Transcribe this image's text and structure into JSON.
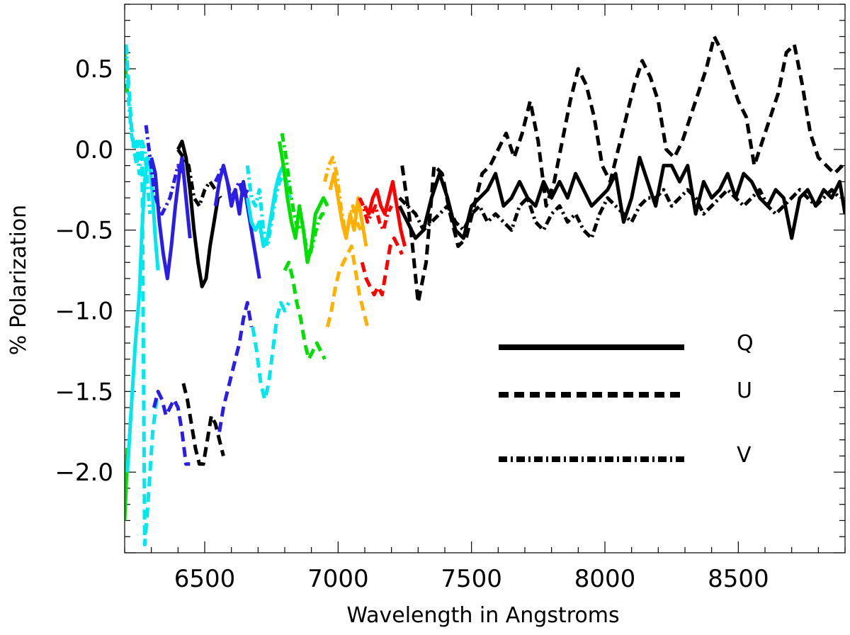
{
  "chart_data": {
    "type": "line",
    "title": "",
    "xlabel": "Wavelength in Angstroms",
    "ylabel": "% Polarization",
    "xlim": [
      6200,
      8900
    ],
    "ylim": [
      -2.5,
      0.9
    ],
    "xticks": [
      {
        "value": 6500,
        "label": "6500"
      },
      {
        "value": 7000,
        "label": "7000"
      },
      {
        "value": 7500,
        "label": "7500"
      },
      {
        "value": 8000,
        "label": "8000"
      },
      {
        "value": 8500,
        "label": "8500"
      }
    ],
    "yticks": [
      {
        "value": 0.5,
        "label": "0.5"
      },
      {
        "value": 0.0,
        "label": "0.0"
      },
      {
        "value": -0.5,
        "label": "−0.5"
      },
      {
        "value": -1.0,
        "label": "−1.0"
      },
      {
        "value": -1.5,
        "label": "−1.5"
      },
      {
        "value": -2.0,
        "label": "−2.0"
      }
    ],
    "grid": false,
    "legend": {
      "placement": "lower-right",
      "entries": [
        {
          "label": "Q",
          "style": "solid"
        },
        {
          "label": "U",
          "style": "dashed"
        },
        {
          "label": "V",
          "style": "dashdot"
        }
      ]
    },
    "series": [
      {
        "stokes": "Q",
        "style": "solid",
        "color": "#00e000",
        "x": [
          6200,
          6205,
          6210
        ],
        "y": [
          -2.3,
          -2.1,
          -1.85
        ]
      },
      {
        "stokes": "U",
        "style": "dashed",
        "color": "#00e000",
        "x": [
          6200,
          6205,
          6210
        ],
        "y": [
          0.6,
          0.45,
          0.35
        ]
      },
      {
        "stokes": "Q",
        "style": "solid",
        "color": "#00e8ee",
        "x": [
          6210,
          6225,
          6240,
          6255,
          6265,
          6275,
          6285,
          6295,
          6305,
          6315,
          6325
        ],
        "y": [
          -2.0,
          -1.6,
          -1.2,
          -0.9,
          -0.5,
          -0.2,
          -0.05,
          -0.1,
          -0.3,
          -0.55,
          -0.75
        ]
      },
      {
        "stokes": "U",
        "style": "dashed",
        "color": "#00e8ee",
        "x": [
          6205,
          6215,
          6225,
          6235,
          6245,
          6255,
          6265,
          6275,
          6285,
          6295,
          6305,
          6320
        ],
        "y": [
          0.65,
          0.4,
          0.15,
          0.0,
          -0.1,
          0.05,
          0.0,
          -2.45,
          -2.25,
          -2.0,
          -1.75,
          -1.55
        ]
      },
      {
        "stokes": "V",
        "style": "dashdot",
        "color": "#00e8ee",
        "x": [
          6205,
          6215,
          6225,
          6235,
          6245,
          6255,
          6265,
          6275,
          6285,
          6295
        ],
        "y": [
          0.65,
          0.3,
          0.1,
          0.0,
          0.05,
          -0.15,
          0.05,
          0.0,
          -0.2,
          -0.4
        ]
      },
      {
        "stokes": "Q",
        "style": "solid",
        "color": "#2a1ee6",
        "x": [
          6300,
          6315,
          6330,
          6345,
          6360,
          6375,
          6390,
          6405,
          6415,
          6430,
          6445
        ],
        "y": [
          -0.05,
          -0.15,
          -0.45,
          -0.65,
          -0.8,
          -0.6,
          -0.35,
          -0.15,
          -0.05,
          -0.3,
          -0.55
        ]
      },
      {
        "stokes": "U",
        "style": "dashed",
        "color": "#2a1ee6",
        "x": [
          6310,
          6325,
          6340,
          6355,
          6370,
          6385,
          6400,
          6415,
          6430,
          6445
        ],
        "y": [
          -1.6,
          -1.5,
          -1.55,
          -1.65,
          -1.6,
          -1.55,
          -1.6,
          -1.75,
          -1.95,
          -1.95
        ]
      },
      {
        "stokes": "V",
        "style": "dashdot",
        "color": "#2a1ee6",
        "x": [
          6280,
          6295,
          6310,
          6325,
          6340,
          6355,
          6370,
          6385,
          6400,
          6415
        ],
        "y": [
          0.15,
          -0.05,
          -0.25,
          -0.35,
          -0.4,
          -0.35,
          -0.3,
          -0.2,
          -0.1,
          -0.15
        ]
      },
      {
        "stokes": "Q",
        "style": "solid",
        "color": "#000000",
        "x": [
          6400,
          6415,
          6430,
          6445,
          6460,
          6475,
          6490,
          6505,
          6520,
          6535,
          6550
        ],
        "y": [
          0.0,
          0.05,
          -0.05,
          -0.25,
          -0.5,
          -0.7,
          -0.85,
          -0.8,
          -0.6,
          -0.45,
          -0.3
        ]
      },
      {
        "stokes": "U",
        "style": "dashed",
        "color": "#000000",
        "x": [
          6420,
          6435,
          6450,
          6465,
          6480,
          6495,
          6510,
          6525,
          6540,
          6555,
          6570
        ],
        "y": [
          -1.45,
          -1.55,
          -1.7,
          -1.85,
          -1.95,
          -1.95,
          -1.8,
          -1.65,
          -1.7,
          -1.8,
          -1.9
        ]
      },
      {
        "stokes": "V",
        "style": "dashdot",
        "color": "#000000",
        "x": [
          6400,
          6420,
          6440,
          6460,
          6480,
          6500,
          6520,
          6540,
          6560
        ],
        "y": [
          0.0,
          -0.05,
          -0.1,
          -0.3,
          -0.35,
          -0.25,
          -0.2,
          -0.25,
          -0.3
        ]
      },
      {
        "stokes": "Q",
        "style": "solid",
        "color": "#2a1ee6",
        "x": [
          6540,
          6555,
          6570,
          6585,
          6600,
          6615,
          6630,
          6645,
          6660,
          6675,
          6690,
          6705
        ],
        "y": [
          -0.35,
          -0.2,
          -0.1,
          -0.2,
          -0.35,
          -0.25,
          -0.4,
          -0.2,
          -0.35,
          -0.5,
          -0.65,
          -0.8
        ]
      },
      {
        "stokes": "U",
        "style": "dashed",
        "color": "#2a1ee6",
        "x": [
          6555,
          6570,
          6585,
          6600,
          6615,
          6630,
          6645,
          6660,
          6675
        ],
        "y": [
          -1.75,
          -1.6,
          -1.5,
          -1.4,
          -1.3,
          -1.2,
          -1.05,
          -0.95,
          -1.1
        ]
      },
      {
        "stokes": "V",
        "style": "dashdot",
        "color": "#2a1ee6",
        "x": [
          6540,
          6555,
          6570,
          6585,
          6600,
          6615,
          6630,
          6645,
          6660
        ],
        "y": [
          -0.2,
          -0.15,
          -0.1,
          -0.2,
          -0.3,
          -0.25,
          -0.2,
          -0.3,
          -0.25
        ]
      },
      {
        "stokes": "Q",
        "style": "solid",
        "color": "#00e8ee",
        "x": [
          6660,
          6675,
          6690,
          6705,
          6720,
          6735,
          6750,
          6765,
          6780,
          6795
        ],
        "y": [
          -0.3,
          -0.45,
          -0.5,
          -0.45,
          -0.6,
          -0.55,
          -0.4,
          -0.25,
          -0.15,
          -0.1
        ]
      },
      {
        "stokes": "U",
        "style": "dashed",
        "color": "#00e8ee",
        "x": [
          6680,
          6695,
          6710,
          6725,
          6740,
          6755,
          6770,
          6785,
          6800,
          6815
        ],
        "y": [
          -1.1,
          -1.25,
          -1.45,
          -1.55,
          -1.45,
          -1.25,
          -1.05,
          -0.95,
          -1.0,
          -0.95
        ]
      },
      {
        "stokes": "V",
        "style": "dashdot",
        "color": "#00e8ee",
        "x": [
          6660,
          6675,
          6690,
          6705,
          6720,
          6735,
          6750,
          6765,
          6780,
          6800,
          6820
        ],
        "y": [
          -0.1,
          -0.3,
          -0.35,
          -0.25,
          -0.5,
          -0.6,
          -0.45,
          -0.3,
          -0.2,
          -0.15,
          -0.3
        ]
      },
      {
        "stokes": "Q",
        "style": "solid",
        "color": "#00e000",
        "x": [
          6780,
          6795,
          6810,
          6825,
          6840,
          6855,
          6870,
          6885,
          6900,
          6915,
          6930,
          6945,
          6960
        ],
        "y": [
          0.05,
          -0.1,
          -0.3,
          -0.45,
          -0.55,
          -0.35,
          -0.5,
          -0.7,
          -0.6,
          -0.4,
          -0.35,
          -0.3,
          -0.35
        ]
      },
      {
        "stokes": "U",
        "style": "dashed",
        "color": "#00e000",
        "x": [
          6800,
          6815,
          6830,
          6845,
          6860,
          6875,
          6890,
          6905,
          6920,
          6935,
          6950
        ],
        "y": [
          -0.75,
          -0.7,
          -0.8,
          -0.95,
          -1.05,
          -1.2,
          -1.3,
          -1.25,
          -1.2,
          -1.25,
          -1.3
        ]
      },
      {
        "stokes": "V",
        "style": "dashdot",
        "color": "#00e000",
        "x": [
          6790,
          6805,
          6820,
          6835,
          6850,
          6865,
          6880,
          6895,
          6910,
          6925,
          6940,
          6955
        ],
        "y": [
          0.1,
          -0.05,
          -0.25,
          -0.4,
          -0.5,
          -0.45,
          -0.6,
          -0.65,
          -0.55,
          -0.45,
          -0.4,
          -0.4
        ]
      },
      {
        "stokes": "Q",
        "style": "solid",
        "color": "#ffb000",
        "x": [
          6970,
          6985,
          7000,
          7015,
          7030,
          7045,
          7060,
          7075,
          7090,
          7105
        ],
        "y": [
          -0.25,
          -0.15,
          -0.3,
          -0.45,
          -0.55,
          -0.4,
          -0.5,
          -0.3,
          -0.45,
          -0.6
        ]
      },
      {
        "stokes": "U",
        "style": "dashed",
        "color": "#ffb000",
        "x": [
          6960,
          6975,
          6990,
          7005,
          7020,
          7035,
          7050,
          7065,
          7080,
          7095,
          7110
        ],
        "y": [
          -1.1,
          -1.0,
          -0.85,
          -0.75,
          -0.7,
          -0.65,
          -0.6,
          -0.75,
          -0.9,
          -1.0,
          -1.1
        ]
      },
      {
        "stokes": "V",
        "style": "dashdot",
        "color": "#ffb000",
        "x": [
          6950,
          6965,
          6980,
          6995,
          7010,
          7025,
          7040,
          7055,
          7070,
          7085
        ],
        "y": [
          -0.2,
          -0.1,
          -0.05,
          -0.15,
          -0.35,
          -0.5,
          -0.45,
          -0.35,
          -0.45,
          -0.5
        ]
      },
      {
        "stokes": "Q",
        "style": "solid",
        "color": "#ff0000",
        "x": [
          7100,
          7115,
          7130,
          7145,
          7160,
          7175,
          7190,
          7205,
          7220,
          7235,
          7250
        ],
        "y": [
          -0.35,
          -0.4,
          -0.3,
          -0.25,
          -0.35,
          -0.4,
          -0.3,
          -0.2,
          -0.35,
          -0.5,
          -0.6
        ]
      },
      {
        "stokes": "U",
        "style": "dashed",
        "color": "#ff0000",
        "x": [
          7090,
          7105,
          7120,
          7135,
          7150,
          7165,
          7180,
          7195,
          7210,
          7225,
          7240
        ],
        "y": [
          -0.7,
          -0.8,
          -0.85,
          -0.9,
          -0.85,
          -0.9,
          -0.75,
          -0.6,
          -0.55,
          -0.6,
          -0.65
        ]
      },
      {
        "stokes": "V",
        "style": "dashdot",
        "color": "#ff0000",
        "x": [
          7080,
          7095,
          7110,
          7125,
          7140,
          7155,
          7170,
          7185,
          7200
        ],
        "y": [
          -0.3,
          -0.35,
          -0.45,
          -0.4,
          -0.35,
          -0.45,
          -0.5,
          -0.4,
          -0.35
        ]
      },
      {
        "stokes": "Q",
        "style": "solid",
        "color": "#000000",
        "x": [
          7230,
          7260,
          7290,
          7320,
          7350,
          7380,
          7410,
          7440,
          7470,
          7500,
          7530,
          7560,
          7590,
          7620,
          7650,
          7680,
          7710,
          7740,
          7770,
          7800,
          7830,
          7860,
          7890,
          7920,
          7950,
          7980,
          8010,
          8040,
          8070,
          8100,
          8130,
          8160,
          8190,
          8220,
          8250,
          8280,
          8310,
          8340,
          8370,
          8400,
          8430,
          8460,
          8490,
          8520,
          8550,
          8580,
          8610,
          8640,
          8670,
          8700,
          8730,
          8760,
          8790,
          8820,
          8850,
          8880,
          8900
        ],
        "y": [
          -0.35,
          -0.45,
          -0.55,
          -0.5,
          -0.3,
          -0.15,
          -0.3,
          -0.5,
          -0.55,
          -0.35,
          -0.3,
          -0.25,
          -0.15,
          -0.35,
          -0.3,
          -0.2,
          -0.3,
          -0.35,
          -0.2,
          -0.3,
          -0.2,
          -0.3,
          -0.15,
          -0.25,
          -0.35,
          -0.3,
          -0.25,
          -0.15,
          -0.45,
          -0.3,
          -0.05,
          -0.2,
          -0.35,
          -0.1,
          -0.1,
          -0.2,
          -0.1,
          -0.4,
          -0.2,
          -0.3,
          -0.25,
          -0.15,
          -0.3,
          -0.15,
          -0.2,
          -0.3,
          -0.35,
          -0.25,
          -0.3,
          -0.55,
          -0.3,
          -0.25,
          -0.35,
          -0.25,
          -0.3,
          -0.2,
          -0.4
        ]
      },
      {
        "stokes": "U",
        "style": "dashed",
        "color": "#000000",
        "x": [
          7240,
          7270,
          7300,
          7330,
          7360,
          7390,
          7420,
          7450,
          7480,
          7510,
          7540,
          7570,
          7600,
          7630,
          7660,
          7690,
          7720,
          7750,
          7780,
          7810,
          7840,
          7870,
          7900,
          7930,
          7960,
          7990,
          8020,
          8050,
          8080,
          8110,
          8140,
          8170,
          8200,
          8230,
          8260,
          8290,
          8320,
          8350,
          8380,
          8410,
          8440,
          8470,
          8500,
          8530,
          8560,
          8590,
          8620,
          8650,
          8680,
          8710,
          8740,
          8770,
          8800,
          8830,
          8860,
          8890
        ],
        "y": [
          -0.1,
          -0.45,
          -0.95,
          -0.7,
          -0.1,
          -0.15,
          -0.4,
          -0.6,
          -0.55,
          -0.35,
          -0.15,
          -0.1,
          0.0,
          0.1,
          -0.05,
          0.1,
          0.3,
          0.05,
          -0.35,
          -0.2,
          0.05,
          0.3,
          0.5,
          0.4,
          0.2,
          -0.1,
          -0.2,
          0.0,
          0.2,
          0.4,
          0.55,
          0.45,
          0.3,
          0.0,
          -0.05,
          0.05,
          0.2,
          0.35,
          0.5,
          0.7,
          0.6,
          0.45,
          0.3,
          0.2,
          -0.1,
          0.05,
          0.2,
          0.35,
          0.6,
          0.65,
          0.4,
          0.1,
          -0.05,
          -0.1,
          -0.15,
          -0.1
        ]
      },
      {
        "stokes": "V",
        "style": "dashdot",
        "color": "#000000",
        "x": [
          7230,
          7260,
          7290,
          7320,
          7350,
          7380,
          7410,
          7440,
          7470,
          7500,
          7530,
          7560,
          7590,
          7620,
          7650,
          7680,
          7710,
          7740,
          7770,
          7800,
          7830,
          7860,
          7890,
          7920,
          7950,
          7980,
          8010,
          8040,
          8070,
          8100,
          8130,
          8160,
          8190,
          8220,
          8250,
          8280,
          8310,
          8340,
          8370,
          8400,
          8430,
          8460,
          8490,
          8520,
          8550,
          8580,
          8610,
          8640,
          8670,
          8700,
          8730,
          8760,
          8790,
          8820,
          8850,
          8880
        ],
        "y": [
          -0.3,
          -0.35,
          -0.4,
          -0.5,
          -0.45,
          -0.4,
          -0.35,
          -0.45,
          -0.5,
          -0.4,
          -0.35,
          -0.45,
          -0.4,
          -0.45,
          -0.5,
          -0.35,
          -0.3,
          -0.45,
          -0.5,
          -0.4,
          -0.35,
          -0.45,
          -0.4,
          -0.5,
          -0.55,
          -0.4,
          -0.3,
          -0.35,
          -0.4,
          -0.45,
          -0.35,
          -0.3,
          -0.3,
          -0.25,
          -0.35,
          -0.3,
          -0.25,
          -0.3,
          -0.4,
          -0.35,
          -0.3,
          -0.25,
          -0.3,
          -0.35,
          -0.3,
          -0.25,
          -0.35,
          -0.4,
          -0.35,
          -0.3,
          -0.25,
          -0.3,
          -0.35,
          -0.3,
          -0.25,
          -0.3
        ]
      }
    ]
  }
}
